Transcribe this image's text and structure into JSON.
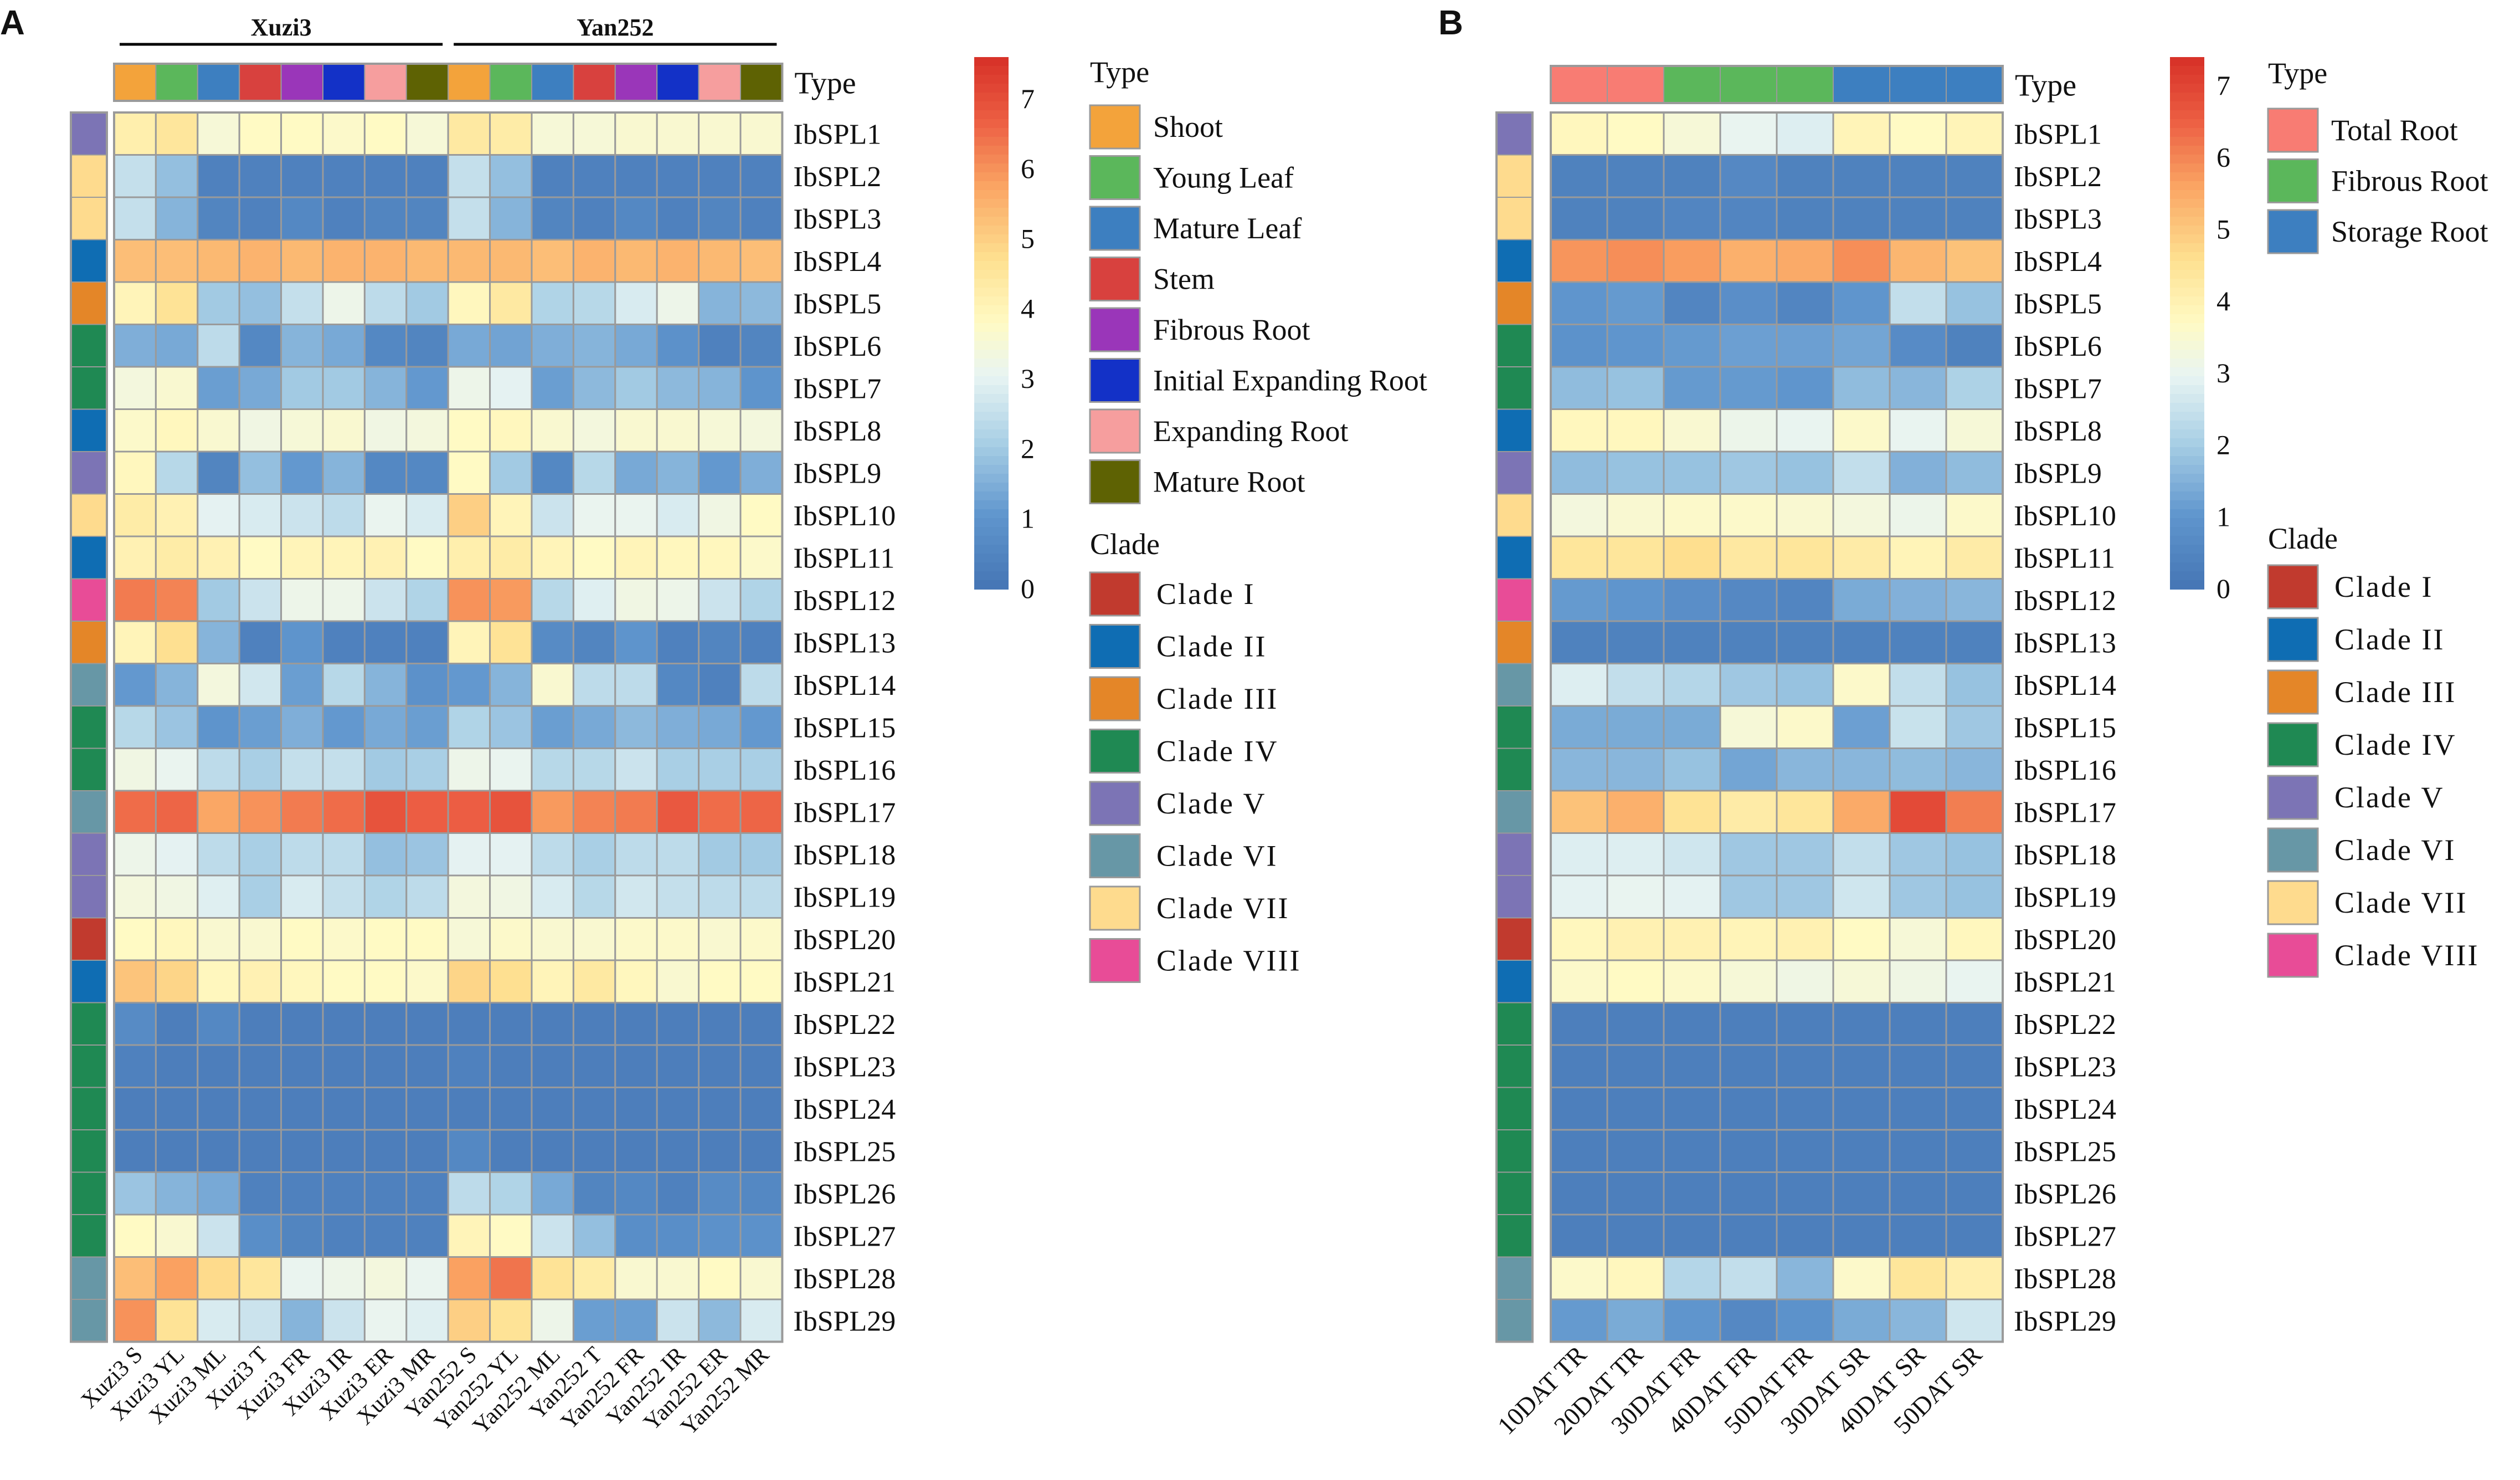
{
  "chart_data": [
    {
      "type": "heatmap",
      "panel_label": "A",
      "groups": [
        "Xuzi3",
        "Yan252"
      ],
      "columns": [
        "Xuzi3 S",
        "Xuzi3 YL",
        "Xuzi3 ML",
        "Xuzi3 T",
        "Xuzi3 FR",
        "Xuzi3 IR",
        "Xuzi3 ER",
        "Xuzi3 MR",
        "Yan252 S",
        "Yan252 YL",
        "Yan252 ML",
        "Yan252 T",
        "Yan252 FR",
        "Yan252 IR",
        "Yan252 ER",
        "Yan252 MR"
      ],
      "column_types": [
        "Shoot",
        "Young Leaf",
        "Mature Leaf",
        "Stem",
        "Fibrous Root",
        "Initial Expanding Root",
        "Expanding Root",
        "Mature Root",
        "Shoot",
        "Young Leaf",
        "Mature Leaf",
        "Stem",
        "Fibrous Root",
        "Initial Expanding Root",
        "Expanding Root",
        "Mature Root"
      ],
      "type_bar_label": "Type",
      "rows": [
        "IbSPL1",
        "IbSPL2",
        "IbSPL3",
        "IbSPL4",
        "IbSPL5",
        "IbSPL6",
        "IbSPL7",
        "IbSPL8",
        "IbSPL9",
        "IbSPL10",
        "IbSPL11",
        "IbSPL12",
        "IbSPL13",
        "IbSPL14",
        "IbSPL15",
        "IbSPL16",
        "IbSPL17",
        "IbSPL18",
        "IbSPL19",
        "IbSPL20",
        "IbSPL21",
        "IbSPL22",
        "IbSPL23",
        "IbSPL24",
        "IbSPL25",
        "IbSPL26",
        "IbSPL27",
        "IbSPL28",
        "IbSPL29"
      ],
      "row_clades": [
        "Clade V",
        "Clade VII",
        "Clade VII",
        "Clade II",
        "Clade III",
        "Clade IV",
        "Clade IV",
        "Clade II",
        "Clade V",
        "Clade VII",
        "Clade II",
        "Clade VIII",
        "Clade III",
        "Clade VI",
        "Clade IV",
        "Clade IV",
        "Clade VI",
        "Clade V",
        "Clade V",
        "Clade I",
        "Clade II",
        "Clade IV",
        "Clade IV",
        "Clade IV",
        "Clade IV",
        "Clade IV",
        "Clade IV",
        "Clade VI",
        "Clade VI"
      ],
      "values": [
        [
          4.2,
          4.5,
          3.5,
          3.8,
          3.8,
          3.7,
          3.8,
          3.5,
          4.4,
          4.3,
          3.5,
          3.5,
          3.6,
          3.6,
          3.6,
          3.6
        ],
        [
          2.5,
          1.8,
          0.4,
          0.4,
          0.4,
          0.4,
          0.4,
          0.4,
          2.5,
          1.8,
          0.4,
          0.4,
          0.4,
          0.4,
          0.4,
          0.4
        ],
        [
          2.5,
          1.6,
          0.5,
          0.4,
          0.6,
          0.4,
          0.5,
          0.5,
          2.5,
          1.6,
          0.5,
          0.4,
          0.6,
          0.4,
          0.5,
          0.4
        ],
        [
          5.3,
          5.3,
          5.4,
          5.5,
          5.4,
          5.5,
          5.5,
          5.4,
          5.4,
          5.4,
          5.3,
          5.5,
          5.4,
          5.5,
          5.4,
          5.3
        ],
        [
          4.0,
          4.6,
          2.0,
          1.8,
          2.5,
          3.2,
          2.4,
          2.0,
          3.9,
          4.4,
          2.2,
          2.3,
          2.8,
          3.2,
          1.6,
          1.7
        ],
        [
          1.5,
          1.4,
          2.4,
          0.6,
          1.6,
          1.4,
          0.6,
          0.5,
          1.4,
          1.3,
          1.5,
          1.6,
          1.4,
          0.9,
          0.4,
          0.5
        ],
        [
          3.4,
          3.6,
          1.2,
          1.4,
          2.0,
          2.0,
          1.6,
          1.1,
          3.2,
          3.0,
          1.2,
          1.7,
          2.0,
          1.7,
          1.6,
          1.0
        ],
        [
          3.7,
          3.9,
          3.6,
          3.3,
          3.5,
          3.6,
          3.3,
          3.4,
          3.8,
          3.9,
          3.6,
          3.4,
          3.6,
          3.6,
          3.5,
          3.4
        ],
        [
          3.9,
          2.3,
          0.5,
          1.8,
          1.1,
          1.6,
          0.6,
          0.6,
          3.8,
          2.0,
          0.6,
          2.3,
          1.4,
          1.6,
          1.1,
          1.5
        ],
        [
          4.3,
          4.1,
          3.0,
          2.8,
          2.6,
          2.4,
          3.1,
          2.8,
          5.0,
          4.0,
          2.6,
          3.1,
          3.1,
          2.8,
          3.3,
          3.8
        ],
        [
          4.1,
          4.3,
          4.1,
          3.8,
          4.0,
          4.0,
          4.1,
          3.8,
          4.2,
          4.3,
          4.0,
          3.8,
          4.0,
          3.9,
          3.9,
          3.7
        ],
        [
          6.3,
          6.2,
          2.0,
          2.6,
          3.2,
          3.2,
          2.6,
          2.2,
          6.0,
          5.9,
          2.3,
          2.9,
          3.3,
          3.2,
          2.6,
          2.2
        ],
        [
          4.0,
          4.7,
          1.6,
          0.4,
          1.0,
          0.4,
          0.4,
          0.4,
          4.0,
          4.6,
          0.7,
          0.5,
          1.0,
          0.4,
          0.5,
          0.4
        ],
        [
          1.1,
          1.6,
          3.4,
          2.7,
          1.2,
          2.3,
          1.6,
          0.9,
          1.1,
          1.6,
          3.6,
          2.4,
          2.4,
          0.6,
          0.4,
          2.4
        ],
        [
          2.3,
          1.9,
          1.0,
          1.2,
          1.5,
          1.1,
          1.4,
          1.2,
          2.2,
          1.9,
          1.2,
          1.4,
          1.7,
          1.5,
          1.4,
          1.1
        ],
        [
          3.3,
          3.1,
          2.4,
          2.1,
          2.5,
          2.5,
          2.0,
          2.1,
          3.2,
          3.1,
          2.3,
          2.3,
          2.6,
          2.1,
          2.1,
          2.1
        ],
        [
          6.5,
          6.6,
          5.7,
          6.0,
          6.3,
          6.5,
          6.9,
          6.7,
          6.7,
          6.9,
          5.9,
          6.2,
          6.3,
          6.8,
          6.5,
          6.6
        ],
        [
          3.2,
          3.0,
          2.4,
          2.1,
          2.4,
          2.4,
          1.8,
          1.9,
          3.0,
          3.0,
          2.4,
          2.1,
          2.4,
          2.4,
          2.0,
          2.0
        ],
        [
          3.4,
          3.3,
          2.9,
          2.1,
          2.8,
          2.5,
          2.2,
          2.4,
          3.4,
          3.3,
          2.8,
          2.3,
          2.7,
          2.5,
          2.4,
          2.4
        ],
        [
          3.8,
          3.9,
          3.6,
          3.6,
          3.8,
          3.7,
          3.8,
          3.8,
          3.5,
          3.7,
          3.6,
          3.6,
          3.7,
          3.7,
          3.6,
          3.7
        ],
        [
          5.2,
          4.9,
          3.9,
          4.1,
          3.9,
          3.8,
          3.8,
          3.7,
          4.9,
          4.7,
          4.0,
          4.4,
          3.9,
          3.6,
          3.8,
          3.8
        ],
        [
          0.7,
          0.3,
          0.6,
          0.3,
          0.3,
          0.3,
          0.3,
          0.3,
          0.3,
          0.3,
          0.3,
          0.3,
          0.3,
          0.3,
          0.3,
          0.3
        ],
        [
          0.4,
          0.3,
          0.3,
          0.3,
          0.3,
          0.3,
          0.3,
          0.3,
          0.4,
          0.3,
          0.3,
          0.3,
          0.3,
          0.3,
          0.3,
          0.3
        ],
        [
          0.3,
          0.3,
          0.3,
          0.3,
          0.3,
          0.3,
          0.3,
          0.3,
          0.3,
          0.3,
          0.3,
          0.3,
          0.3,
          0.3,
          0.3,
          0.3
        ],
        [
          0.3,
          0.3,
          0.3,
          0.3,
          0.3,
          0.3,
          0.3,
          0.3,
          0.6,
          0.3,
          0.3,
          0.3,
          0.3,
          0.3,
          0.3,
          0.3
        ],
        [
          1.9,
          1.6,
          1.4,
          0.4,
          0.4,
          0.4,
          0.4,
          0.4,
          2.4,
          2.2,
          1.4,
          0.5,
          0.6,
          0.4,
          0.7,
          0.6
        ],
        [
          3.8,
          3.6,
          2.6,
          0.8,
          0.5,
          0.4,
          0.4,
          0.4,
          4.0,
          3.8,
          2.6,
          1.8,
          0.8,
          0.8,
          0.9,
          0.9
        ],
        [
          5.3,
          5.8,
          4.8,
          4.5,
          3.1,
          3.2,
          3.4,
          3.1,
          5.8,
          6.4,
          4.6,
          4.3,
          3.6,
          3.6,
          3.8,
          3.6
        ],
        [
          6.0,
          4.6,
          2.8,
          2.6,
          1.6,
          2.6,
          3.1,
          2.9,
          5.0,
          4.6,
          3.2,
          1.2,
          1.2,
          2.6,
          1.7,
          2.8
        ]
      ],
      "colorbar": {
        "min": 0,
        "max": 7.6,
        "ticks": [
          "0",
          "1",
          "2",
          "3",
          "4",
          "5",
          "6",
          "7"
        ]
      },
      "legends": {
        "type": {
          "title": "Type",
          "items": [
            {
              "label": "Shoot",
              "color": "#F3A33B"
            },
            {
              "label": "Young Leaf",
              "color": "#5BB75B"
            },
            {
              "label": "Mature Leaf",
              "color": "#3D7FC0"
            },
            {
              "label": "Stem",
              "color": "#D8413E"
            },
            {
              "label": "Fibrous Root",
              "color": "#9A36B9"
            },
            {
              "label": "Initial Expanding Root",
              "color": "#1331C7"
            },
            {
              "label": "Expanding Root",
              "color": "#F69E9E"
            },
            {
              "label": "Mature Root",
              "color": "#5E6203"
            }
          ]
        },
        "clade": {
          "title": "Clade",
          "items": [
            {
              "label": "Clade I",
              "color": "#C13A2E"
            },
            {
              "label": "Clade II",
              "color": "#0F6DB3"
            },
            {
              "label": "Clade III",
              "color": "#E48628"
            },
            {
              "label": "Clade IV",
              "color": "#1F8953"
            },
            {
              "label": "Clade V",
              "color": "#7C74B5"
            },
            {
              "label": "Clade VI",
              "color": "#6797A6"
            },
            {
              "label": "Clade VII",
              "color": "#FEDB8E"
            },
            {
              "label": "Clade VIII",
              "color": "#E84C97"
            }
          ]
        }
      }
    },
    {
      "type": "heatmap",
      "panel_label": "B",
      "columns": [
        "10DAT TR",
        "20DAT TR",
        "30DAT FR",
        "40DAT FR",
        "50DAT FR",
        "30DAT SR",
        "40DAT SR",
        "50DAT SR"
      ],
      "column_types": [
        "Total Root",
        "Total Root",
        "Fibrous Root",
        "Fibrous Root",
        "Fibrous Root",
        "Storage Root",
        "Storage Root",
        "Storage Root"
      ],
      "type_bar_label": "Type",
      "rows": [
        "IbSPL1",
        "IbSPL2",
        "IbSPL3",
        "IbSPL4",
        "IbSPL5",
        "IbSPL6",
        "IbSPL7",
        "IbSPL8",
        "IbSPL9",
        "IbSPL10",
        "IbSPL11",
        "IbSPL12",
        "IbSPL13",
        "IbSPL14",
        "IbSPL15",
        "IbSPL16",
        "IbSPL17",
        "IbSPL18",
        "IbSPL19",
        "IbSPL20",
        "IbSPL21",
        "IbSPL22",
        "IbSPL23",
        "IbSPL24",
        "IbSPL25",
        "IbSPL26",
        "IbSPL27",
        "IbSPL28",
        "IbSPL29"
      ],
      "row_clades": [
        "Clade V",
        "Clade VII",
        "Clade VII",
        "Clade II",
        "Clade III",
        "Clade IV",
        "Clade IV",
        "Clade II",
        "Clade V",
        "Clade VII",
        "Clade II",
        "Clade VIII",
        "Clade III",
        "Clade VI",
        "Clade IV",
        "Clade IV",
        "Clade VI",
        "Clade V",
        "Clade V",
        "Clade I",
        "Clade II",
        "Clade IV",
        "Clade IV",
        "Clade IV",
        "Clade IV",
        "Clade IV",
        "Clade IV",
        "Clade VI",
        "Clade VI"
      ],
      "values": [
        [
          3.8,
          3.7,
          3.4,
          3.0,
          2.8,
          3.9,
          3.7,
          3.9
        ],
        [
          0.4,
          0.4,
          0.4,
          0.6,
          0.4,
          0.4,
          0.4,
          0.4
        ],
        [
          0.4,
          0.4,
          0.5,
          0.5,
          0.4,
          0.4,
          0.4,
          0.4
        ],
        [
          5.8,
          5.9,
          5.7,
          5.4,
          5.5,
          5.9,
          5.3,
          5.1
        ],
        [
          1.0,
          1.1,
          0.5,
          0.8,
          0.5,
          1.0,
          2.4,
          1.8
        ],
        [
          0.9,
          1.0,
          1.1,
          1.2,
          1.2,
          1.3,
          0.7,
          0.4
        ],
        [
          1.7,
          1.8,
          1.1,
          1.1,
          1.0,
          1.7,
          1.6,
          2.1
        ],
        [
          3.8,
          3.8,
          3.5,
          3.1,
          3.0,
          3.6,
          3.0,
          3.4
        ],
        [
          1.7,
          1.8,
          1.8,
          1.9,
          1.8,
          2.4,
          1.5,
          1.7
        ],
        [
          3.3,
          3.5,
          3.6,
          3.6,
          3.5,
          3.3,
          3.1,
          3.6
        ],
        [
          4.4,
          4.4,
          4.6,
          4.3,
          4.4,
          4.2,
          3.9,
          4.2
        ],
        [
          1.1,
          1.0,
          0.8,
          0.6,
          0.5,
          1.4,
          1.5,
          1.6
        ],
        [
          0.4,
          0.4,
          0.4,
          0.4,
          0.4,
          0.4,
          0.4,
          0.4
        ],
        [
          2.8,
          2.4,
          2.2,
          1.9,
          1.8,
          3.6,
          2.4,
          1.8
        ],
        [
          1.4,
          1.4,
          1.4,
          3.4,
          3.6,
          1.2,
          2.5,
          1.9
        ],
        [
          1.6,
          1.6,
          1.8,
          1.3,
          1.6,
          1.6,
          1.7,
          1.6
        ],
        [
          5.1,
          5.4,
          4.5,
          4.2,
          4.4,
          5.5,
          6.9,
          6.1
        ],
        [
          2.8,
          2.8,
          2.6,
          1.9,
          1.9,
          2.4,
          1.9,
          1.8
        ],
        [
          2.9,
          3.0,
          2.9,
          1.9,
          1.9,
          2.6,
          1.9,
          1.8
        ],
        [
          3.8,
          4.0,
          4.0,
          3.9,
          4.0,
          3.7,
          3.4,
          3.8
        ],
        [
          3.6,
          3.7,
          3.6,
          3.4,
          3.2,
          3.4,
          3.2,
          3.0
        ],
        [
          0.3,
          0.3,
          0.3,
          0.3,
          0.3,
          0.3,
          0.3,
          0.3
        ],
        [
          0.3,
          0.3,
          0.3,
          0.3,
          0.3,
          0.3,
          0.3,
          0.3
        ],
        [
          0.3,
          0.3,
          0.3,
          0.3,
          0.3,
          0.3,
          0.3,
          0.3
        ],
        [
          0.3,
          0.3,
          0.3,
          0.3,
          0.3,
          0.3,
          0.3,
          0.3
        ],
        [
          0.3,
          0.3,
          0.3,
          0.3,
          0.3,
          0.3,
          0.3,
          0.3
        ],
        [
          0.3,
          0.3,
          0.3,
          0.3,
          0.3,
          0.3,
          0.3,
          0.3
        ],
        [
          3.6,
          3.8,
          2.2,
          2.4,
          1.6,
          3.6,
          4.4,
          4.1
        ],
        [
          1.1,
          1.4,
          1.0,
          0.6,
          0.9,
          1.4,
          1.6,
          2.6
        ]
      ],
      "colorbar": {
        "min": 0,
        "max": 7.4,
        "ticks": [
          "0",
          "1",
          "2",
          "3",
          "4",
          "5",
          "6",
          "7"
        ]
      },
      "legends": {
        "type": {
          "title": "Type",
          "items": [
            {
              "label": "Total Root",
              "color": "#F87C73"
            },
            {
              "label": "Fibrous Root",
              "color": "#5BB75B"
            },
            {
              "label": "Storage Root",
              "color": "#3D7FC0"
            }
          ]
        },
        "clade": {
          "title": "Clade",
          "items": [
            {
              "label": "Clade I",
              "color": "#C13A2E"
            },
            {
              "label": "Clade II",
              "color": "#0F6DB3"
            },
            {
              "label": "Clade III",
              "color": "#E48628"
            },
            {
              "label": "Clade IV",
              "color": "#1F8953"
            },
            {
              "label": "Clade V",
              "color": "#7C74B5"
            },
            {
              "label": "Clade VI",
              "color": "#6797A6"
            },
            {
              "label": "Clade VII",
              "color": "#FEDB8E"
            },
            {
              "label": "Clade VIII",
              "color": "#E84C97"
            }
          ]
        }
      }
    }
  ]
}
